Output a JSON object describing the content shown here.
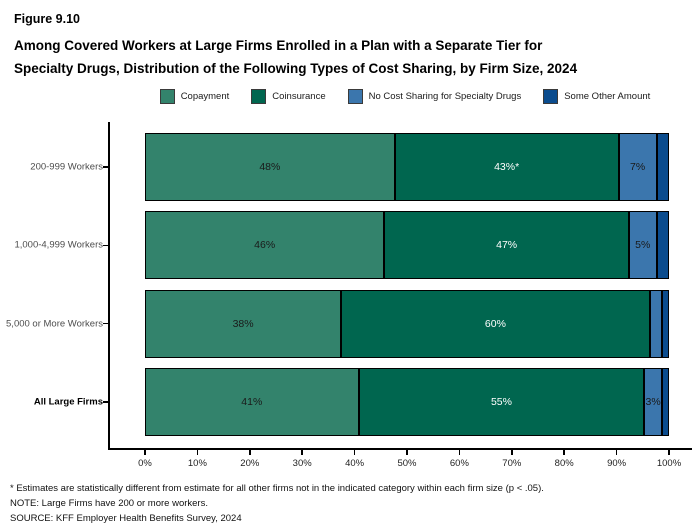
{
  "figure_label": "Figure 9.10",
  "title": {
    "line1": "Among Covered Workers at Large Firms Enrolled in a Plan with a Separate Tier for",
    "line2": "Specialty Drugs, Distribution of the Following Types of Cost Sharing, by Firm Size, 2024"
  },
  "colors": {
    "copayment": "#33836C",
    "coinsurance": "#00664F",
    "no_cost_sharing": "#3B76AD",
    "some_other_amount": "#0B4C8E",
    "segment_border": "#000000",
    "axis": "#000000",
    "row_label_gray": "#4d4d4d"
  },
  "legend": {
    "items": [
      {
        "label": "Copayment",
        "color": "#33836C"
      },
      {
        "label": "Coinsurance",
        "color": "#00664F"
      },
      {
        "label": "No Cost Sharing for Specialty Drugs",
        "color": "#3B76AD"
      },
      {
        "label": "Some Other Amount",
        "color": "#0B4C8E"
      }
    ]
  },
  "chart_data": {
    "type": "bar",
    "orientation": "horizontal",
    "stacked": true,
    "title": "Among Covered Workers at Large Firms Enrolled in a Plan with a Separate Tier for Specialty Drugs, Distribution of the Following Types of Cost Sharing, by Firm Size, 2024",
    "categories": [
      "200-999 Workers",
      "1,000-4,999 Workers",
      "5,000 or More Workers",
      "All Large Firms"
    ],
    "bold_category": "All Large Firms",
    "series": [
      {
        "name": "Copayment",
        "color": "#33836C",
        "text_color": "#1a1a1a",
        "values": [
          48,
          46,
          38,
          41
        ],
        "labels": [
          "48%",
          "46%",
          "38%",
          "41%"
        ]
      },
      {
        "name": "Coinsurance",
        "color": "#00664F",
        "text_color": "#ffffff",
        "values": [
          43,
          47,
          60,
          55
        ],
        "labels": [
          "43%*",
          "47%",
          "60%",
          "55%"
        ]
      },
      {
        "name": "No Cost Sharing for Specialty Drugs",
        "color": "#3B76AD",
        "text_color": "#1a1a1a",
        "values": [
          7,
          5,
          2,
          3
        ],
        "labels": [
          "7%",
          "5%",
          "",
          "3%"
        ]
      },
      {
        "name": "Some Other Amount",
        "color": "#0B4C8E",
        "text_color": "#ffffff",
        "values": [
          2,
          2,
          1,
          1
        ],
        "labels": [
          "",
          "",
          "",
          ""
        ]
      }
    ],
    "xlim": [
      0,
      100
    ],
    "x_ticks": [
      "0%",
      "10%",
      "20%",
      "30%",
      "40%",
      "50%",
      "60%",
      "70%",
      "80%",
      "90%",
      "100%"
    ],
    "grid": false,
    "legend_position": "top"
  },
  "footnotes": {
    "line1": "* Estimates are statistically different from estimate for all other firms not in the indicated category within each firm size (p < .05).",
    "line2": "NOTE: Large Firms have 200 or more workers.",
    "line3": "SOURCE: KFF Employer Health Benefits Survey, 2024"
  }
}
